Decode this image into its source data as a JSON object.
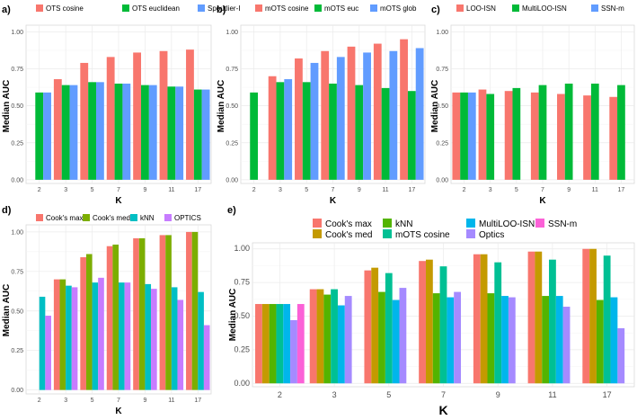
{
  "chart_data": [
    {
      "panel": "a)",
      "type": "bar",
      "categories": [
        "2",
        "3",
        "5",
        "7",
        "9",
        "11",
        "17"
      ],
      "xlabel": "K",
      "ylabel": "Median AUC",
      "ylim": [
        0,
        1.0
      ],
      "yticks": [
        "0.00",
        "0.25",
        "0.50",
        "0.75",
        "1.00"
      ],
      "series": [
        {
          "name": "OTS cosine",
          "color": "#F8766D",
          "values": [
            null,
            0.68,
            0.79,
            0.83,
            0.86,
            0.87,
            0.88
          ]
        },
        {
          "name": "OTS euclidean",
          "color": "#00BA38",
          "values": [
            0.59,
            0.64,
            0.66,
            0.65,
            0.64,
            0.63,
            0.61
          ]
        },
        {
          "name": "Spoutlier-I",
          "color": "#619CFF",
          "values": [
            0.59,
            0.64,
            0.66,
            0.65,
            0.64,
            0.63,
            0.61
          ]
        }
      ]
    },
    {
      "panel": "b)",
      "type": "bar",
      "categories": [
        "2",
        "3",
        "5",
        "7",
        "9",
        "11",
        "17"
      ],
      "xlabel": "K",
      "ylabel": "Median AUC",
      "ylim": [
        0,
        1.0
      ],
      "yticks": [
        "0.00",
        "0.25",
        "0.50",
        "0.75",
        "1.00"
      ],
      "series": [
        {
          "name": "mOTS cosine",
          "color": "#F8766D",
          "values": [
            null,
            0.7,
            0.82,
            0.87,
            0.9,
            0.92,
            0.95
          ]
        },
        {
          "name": "mOTS euc",
          "color": "#00BA38",
          "values": [
            0.59,
            0.66,
            0.66,
            0.65,
            0.64,
            0.62,
            0.6
          ]
        },
        {
          "name": "mOTS glob",
          "color": "#619CFF",
          "values": [
            null,
            0.68,
            0.79,
            0.83,
            0.86,
            0.87,
            0.89
          ]
        }
      ]
    },
    {
      "panel": "c)",
      "type": "bar",
      "categories": [
        "2",
        "3",
        "5",
        "7",
        "9",
        "11",
        "17"
      ],
      "xlabel": "K",
      "ylabel": "Median AUC",
      "ylim": [
        0,
        1.0
      ],
      "yticks": [
        "0.00",
        "0.25",
        "0.50",
        "0.75",
        "1.00"
      ],
      "series": [
        {
          "name": "LOO-ISN",
          "color": "#F8766D",
          "values": [
            0.59,
            0.61,
            0.6,
            0.59,
            0.58,
            0.57,
            0.56
          ]
        },
        {
          "name": "MultiLOO-ISN",
          "color": "#00BA38",
          "values": [
            0.59,
            0.58,
            0.62,
            0.64,
            0.65,
            0.65,
            0.64
          ]
        },
        {
          "name": "SSN-m",
          "color": "#619CFF",
          "values": [
            0.59,
            null,
            null,
            null,
            null,
            null,
            null
          ]
        }
      ]
    },
    {
      "panel": "d)",
      "type": "bar",
      "categories": [
        "2",
        "3",
        "5",
        "7",
        "9",
        "11",
        "17"
      ],
      "xlabel": "K",
      "ylabel": "Median AUC",
      "ylim": [
        0,
        1.0
      ],
      "yticks": [
        "0.00",
        "0.25",
        "0.50",
        "0.75",
        "1.00"
      ],
      "series": [
        {
          "name": "Cook's max",
          "color": "#F8766D",
          "values": [
            null,
            0.7,
            0.84,
            0.91,
            0.96,
            0.98,
            1.0
          ]
        },
        {
          "name": "Cook's med",
          "color": "#7CAE00",
          "values": [
            null,
            0.7,
            0.86,
            0.92,
            0.96,
            0.98,
            1.0
          ]
        },
        {
          "name": "kNN",
          "color": "#00BFC4",
          "values": [
            0.59,
            0.66,
            0.68,
            0.68,
            0.67,
            0.65,
            0.62
          ]
        },
        {
          "name": "OPTICS",
          "color": "#C77CFF",
          "values": [
            0.47,
            0.65,
            0.71,
            0.68,
            0.64,
            0.57,
            0.41
          ]
        }
      ]
    },
    {
      "panel": "e)",
      "type": "bar",
      "categories": [
        "2",
        "3",
        "5",
        "7",
        "9",
        "11",
        "17"
      ],
      "xlabel": "K",
      "ylabel": "Median AUC",
      "ylim": [
        0,
        1.0
      ],
      "yticks": [
        "0.00",
        "0.25",
        "0.50",
        "0.75",
        "1.00"
      ],
      "series": [
        {
          "name": "Cook's max",
          "color": "#F8766D",
          "values": [
            0.59,
            0.7,
            0.84,
            0.91,
            0.96,
            0.98,
            1.0
          ]
        },
        {
          "name": "Cook's med",
          "color": "#C49A00",
          "values": [
            0.59,
            0.7,
            0.86,
            0.92,
            0.96,
            0.98,
            1.0
          ]
        },
        {
          "name": "kNN",
          "color": "#53B400",
          "values": [
            0.59,
            0.66,
            0.68,
            0.67,
            0.67,
            0.65,
            0.62
          ]
        },
        {
          "name": "mOTS cosine",
          "color": "#00C094",
          "values": [
            0.59,
            0.7,
            0.82,
            0.87,
            0.9,
            0.92,
            0.95
          ]
        },
        {
          "name": "MultiLOO-ISN",
          "color": "#00B6EB",
          "values": [
            0.59,
            0.58,
            0.62,
            0.64,
            0.65,
            0.65,
            0.64
          ]
        },
        {
          "name": "Optics",
          "color": "#A58AFF",
          "values": [
            0.47,
            0.65,
            0.71,
            0.68,
            0.64,
            0.57,
            0.41
          ]
        },
        {
          "name": "SSN-m",
          "color": "#FB61D7",
          "values": [
            0.59,
            null,
            null,
            null,
            null,
            null,
            null
          ]
        }
      ]
    }
  ]
}
